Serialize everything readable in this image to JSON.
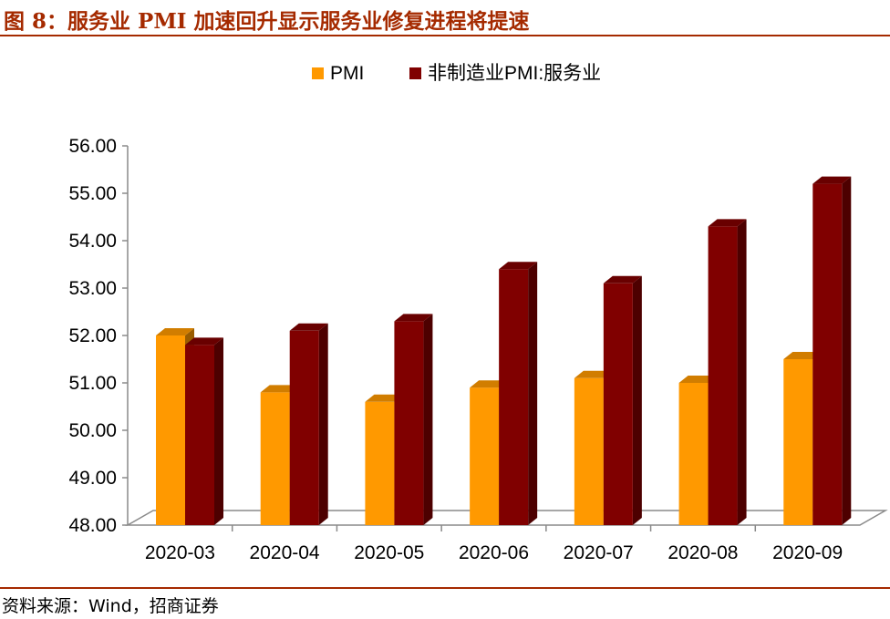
{
  "header": {
    "title": "图 8：服务业 PMI 加速回升显示服务业修复进程将提速"
  },
  "footer": {
    "source": "资料来源：Wind，招商证券"
  },
  "colors": {
    "accent": "#a52a00",
    "series_pmi": "#ff9900",
    "series_services": "#800000"
  },
  "chart_data": {
    "type": "bar",
    "categories": [
      "2020-03",
      "2020-04",
      "2020-05",
      "2020-06",
      "2020-07",
      "2020-08",
      "2020-09"
    ],
    "series": [
      {
        "name": "PMI",
        "values": [
          52.0,
          50.8,
          50.6,
          50.9,
          51.1,
          51.0,
          51.5
        ],
        "color": "#ff9900"
      },
      {
        "name": "非制造业PMI:服务业",
        "values": [
          51.8,
          52.1,
          52.3,
          53.4,
          53.1,
          54.3,
          55.2
        ],
        "color": "#800000"
      }
    ],
    "ylim": [
      48.0,
      56.0
    ],
    "yticks": [
      "48.00",
      "49.00",
      "50.00",
      "51.00",
      "52.00",
      "53.00",
      "54.00",
      "55.00",
      "56.00"
    ],
    "legend_position": "top",
    "grid": false,
    "style": "3d"
  }
}
